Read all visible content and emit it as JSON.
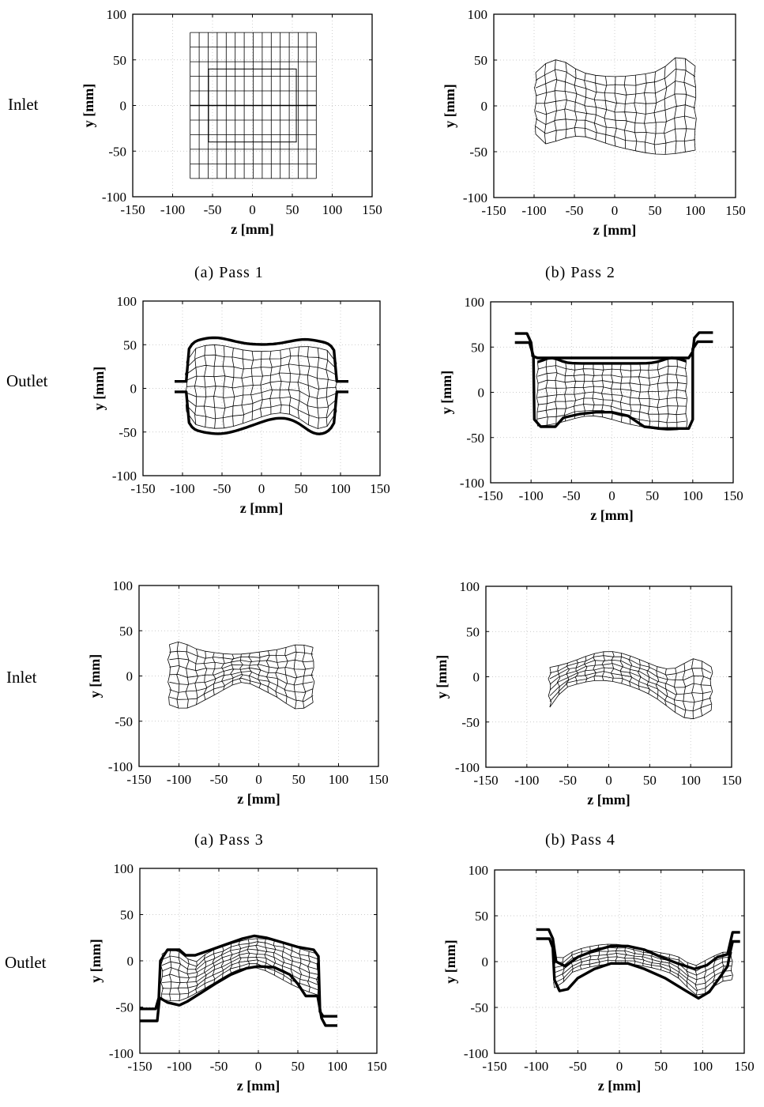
{
  "row_labels": [
    "Inlet",
    "Outlet",
    "Inlet",
    "Outlet"
  ],
  "captions": [
    "(a) Pass 1",
    "(b) Pass 2",
    "(a) Pass 3",
    "(b) Pass 4"
  ],
  "axes": {
    "xlabel": "z [mm]",
    "ylabel": "y [mm]",
    "xticks": [
      "-150",
      "-100",
      "-50",
      "0",
      "50",
      "100",
      "150"
    ],
    "yticks": [
      "100",
      "50",
      "0",
      "-50",
      "-100"
    ],
    "xlim": [
      -150,
      150
    ],
    "ylim": [
      -100,
      100
    ]
  },
  "colors": {
    "mesh": "#000000",
    "roll": "#000000",
    "frame": "#000000",
    "grid": "#bbbbbb"
  },
  "panels": [
    {
      "id": "p1-inlet",
      "shape": "rect",
      "roll": "none",
      "zspan": [
        -78,
        80
      ],
      "yspan": [
        -80,
        80
      ]
    },
    {
      "id": "p2-inlet",
      "shape": "blob",
      "roll": "none",
      "zspan": [
        -100,
        100
      ],
      "yspan": [
        -50,
        50
      ]
    },
    {
      "id": "p1-outlet",
      "shape": "oval",
      "roll": "oval",
      "zspan": [
        -110,
        110
      ],
      "yspan": [
        -48,
        53
      ]
    },
    {
      "id": "p2-outlet",
      "shape": "channel",
      "roll": "channel",
      "zspan": [
        -120,
        125
      ],
      "yspan": [
        -40,
        65
      ]
    },
    {
      "id": "p3-inlet",
      "shape": "blob3",
      "roll": "none",
      "zspan": [
        -115,
        70
      ],
      "yspan": [
        -40,
        40
      ]
    },
    {
      "id": "p4-inlet",
      "shape": "arch4",
      "roll": "none",
      "zspan": [
        -75,
        125
      ],
      "yspan": [
        -50,
        28
      ]
    },
    {
      "id": "p3-outlet",
      "shape": "arch",
      "roll": "arch",
      "zspan": [
        -150,
        100
      ],
      "yspan": [
        -70,
        28
      ]
    },
    {
      "id": "p4-outlet",
      "shape": "wave",
      "roll": "wave",
      "zspan": [
        -100,
        145
      ],
      "yspan": [
        -40,
        35
      ]
    }
  ]
}
